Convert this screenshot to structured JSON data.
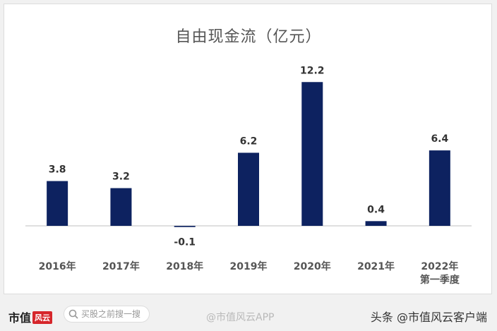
{
  "chart_data": {
    "type": "bar",
    "title": "自由现金流（亿元）",
    "categories": [
      "2016年",
      "2017年",
      "2018年",
      "2019年",
      "2020年",
      "2021年",
      "2022年 第一季度"
    ],
    "category_lines": [
      [
        "2016年"
      ],
      [
        "2017年"
      ],
      [
        "2018年"
      ],
      [
        "2019年"
      ],
      [
        "2020年"
      ],
      [
        "2021年"
      ],
      [
        "2022年",
        "第一季度"
      ]
    ],
    "values": [
      3.8,
      3.2,
      -0.1,
      6.2,
      12.2,
      0.4,
      6.4
    ],
    "value_labels": [
      "3.8",
      "3.2",
      "-0.1",
      "6.2",
      "12.2",
      "0.4",
      "6.4"
    ],
    "ylim": [
      -1,
      13
    ],
    "bar_color": "#0d2260",
    "axis_color": "#bfbfbf",
    "grid": false,
    "legend": "none"
  },
  "footer": {
    "logo_text": "市值",
    "logo_badge": "风云",
    "search_placeholder": "买股之前搜一搜",
    "center_watermark": "@市值风云APP",
    "source_text": "头条 @市值风云客户端"
  }
}
